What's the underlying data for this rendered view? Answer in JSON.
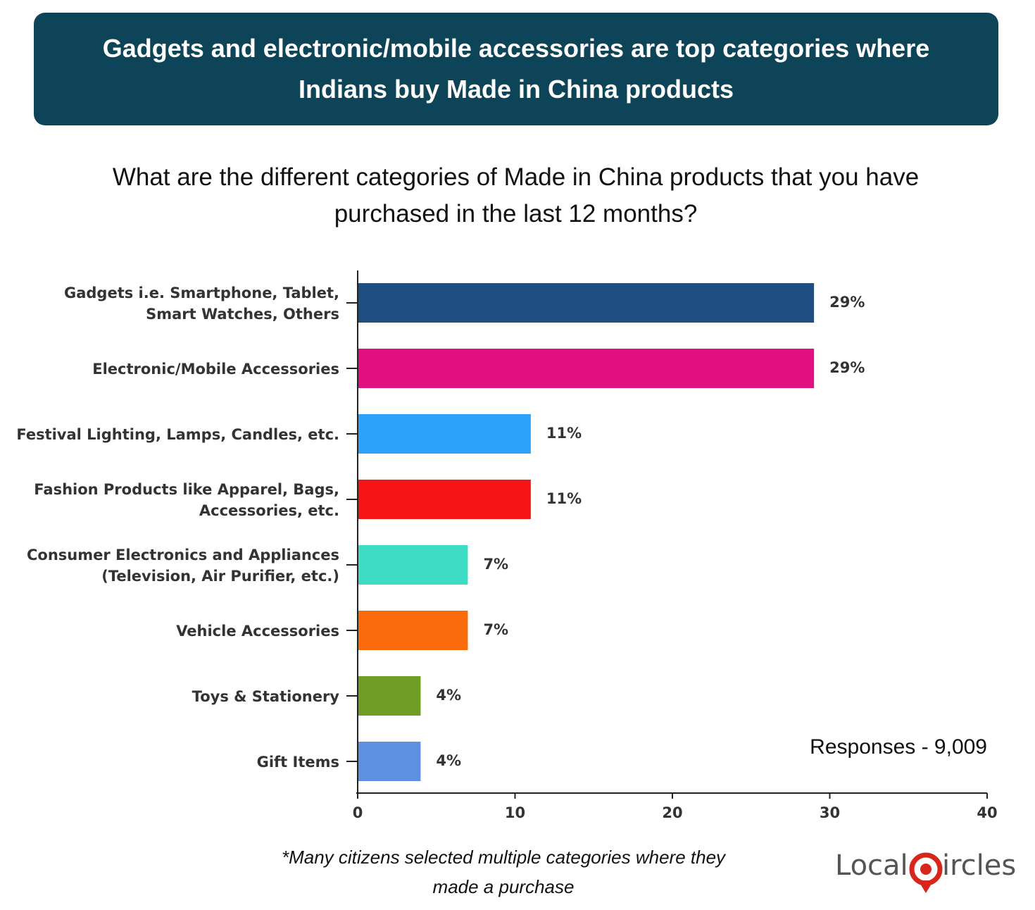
{
  "banner": {
    "line1": "Gadgets and electronic/mobile accessories are top categories where",
    "line2": "Indians buy Made in China products"
  },
  "question": {
    "line1": "What are the different categories of Made in China products that you have",
    "line2": "purchased in the last 12 months?"
  },
  "chart_data": {
    "type": "bar",
    "orientation": "horizontal",
    "categories": [
      [
        "Gadgets i.e. Smartphone, Tablet,",
        "Smart Watches, Others"
      ],
      [
        "Electronic/Mobile Accessories"
      ],
      [
        "Festival Lighting, Lamps, Candles, etc."
      ],
      [
        "Fashion Products like Apparel, Bags,",
        "Accessories, etc."
      ],
      [
        "Consumer Electronics and Appliances",
        "(Television, Air Purifier, etc.)"
      ],
      [
        "Vehicle Accessories"
      ],
      [
        "Toys & Stationery"
      ],
      [
        "Gift Items"
      ]
    ],
    "values": [
      29,
      29,
      11,
      11,
      7,
      7,
      4,
      4
    ],
    "value_labels": [
      "29%",
      "29%",
      "11%",
      "11%",
      "7%",
      "7%",
      "4%",
      "4%"
    ],
    "colors": [
      "#1f4e83",
      "#e0117f",
      "#2ba2f7",
      "#f51414",
      "#3edcc4",
      "#f96a0b",
      "#6f9e24",
      "#5f90e0"
    ],
    "xlim": [
      0,
      40
    ],
    "xticks": [
      "0",
      "10",
      "20",
      "30",
      "40"
    ],
    "grid": false,
    "annotation": "Responses - 9,009"
  },
  "footnote": {
    "line1": "*Many citizens selected multiple categories where they",
    "line2": "made a purchase"
  },
  "logo": {
    "text_left": "Local",
    "text_right": "ircles",
    "accent": "#d9261c"
  }
}
